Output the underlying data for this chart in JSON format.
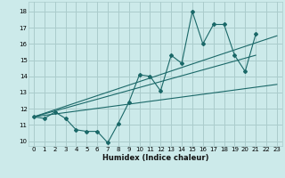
{
  "title": "",
  "xlabel": "Humidex (Indice chaleur)",
  "background_color": "#cceaea",
  "grid_color": "#aacccc",
  "line_color": "#1a6868",
  "xlim": [
    -0.5,
    23.5
  ],
  "ylim": [
    9.7,
    18.6
  ],
  "yticks": [
    10,
    11,
    12,
    13,
    14,
    15,
    16,
    17,
    18
  ],
  "xticks": [
    0,
    1,
    2,
    3,
    4,
    5,
    6,
    7,
    8,
    9,
    10,
    11,
    12,
    13,
    14,
    15,
    16,
    17,
    18,
    19,
    20,
    21,
    22,
    23
  ],
  "jagged": {
    "x": [
      0,
      1,
      2,
      3,
      4,
      5,
      6,
      7,
      8,
      9,
      10,
      11,
      12,
      13,
      14,
      15,
      16,
      17,
      18,
      19,
      20,
      21
    ],
    "y": [
      11.5,
      11.4,
      11.8,
      11.4,
      10.7,
      10.6,
      10.6,
      9.9,
      11.1,
      12.4,
      14.1,
      14.0,
      13.1,
      15.3,
      14.8,
      18.0,
      16.0,
      17.2,
      17.2,
      15.3,
      14.3,
      16.6
    ]
  },
  "trend1": {
    "x": [
      0,
      23
    ],
    "y": [
      11.5,
      13.5
    ]
  },
  "trend2": {
    "x": [
      0,
      23
    ],
    "y": [
      11.5,
      16.5
    ]
  },
  "trend3": {
    "x": [
      0,
      21
    ],
    "y": [
      11.5,
      15.3
    ]
  }
}
